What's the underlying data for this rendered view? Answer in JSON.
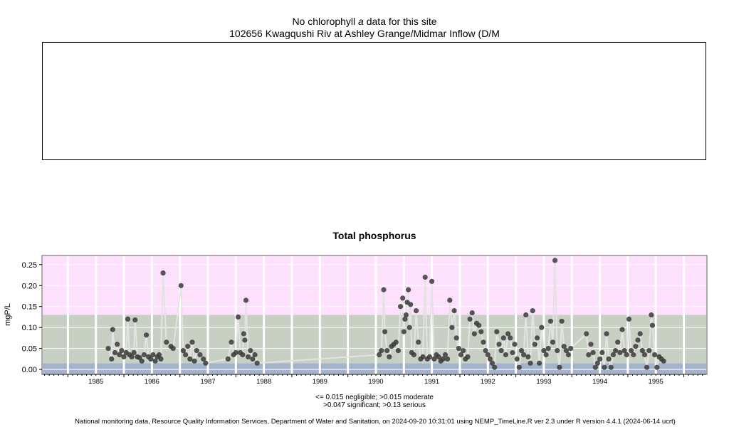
{
  "header": {
    "chl_prefix": "No chlorophyll",
    "chl_italic": "a",
    "chl_suffix": " data for this site",
    "site": "102656 Kwagqushi Riv at Ashley Grange/Midmar Inflow (D/M"
  },
  "notes": {
    "line1": "<= 0.015 negligible; >0.015 moderate",
    "line2": ">0.047 significant; >0.13 serious"
  },
  "footer": "National monitoring data, Resource Quality Information Services, Department of Water and Sanitation, on 2024-09-20 10:31:01 using NEMP_TimeLine.R ver 2.3 under R version 4.4.1 (2024-06-14 ucrt)",
  "colors": {
    "negligible": "#a4b3cc",
    "moderate_significant": "#c8d0c4",
    "serious": "#fde0fc",
    "points": "#3a3a3a",
    "line": "#e3e3e3",
    "grid": "#ffffff"
  },
  "chart_data": {
    "type": "scatter",
    "title": "Total phosphorus",
    "ylabel": "mgP/L",
    "xlabel": "",
    "xlim": [
      1984.55,
      1996.4
    ],
    "ylim": [
      -0.01,
      0.27
    ],
    "yticks": [
      "0.00",
      "0.05",
      "0.10",
      "0.15",
      "0.20",
      "0.25"
    ],
    "xticks": [
      "1985",
      "1986",
      "1987",
      "1988",
      "1989",
      "1990",
      "1991",
      "1992",
      "1993",
      "1994",
      "1995"
    ],
    "bands": [
      {
        "name": "negligible",
        "from": -0.01,
        "to": 0.015
      },
      {
        "name": "moderate/significant",
        "from": 0.015,
        "to": 0.13
      },
      {
        "name": "serious",
        "from": 0.13,
        "to": 0.27
      }
    ],
    "grid": true,
    "series": [
      {
        "points": [
          [
            1985.72,
            0.05
          ],
          [
            1985.78,
            0.025
          ],
          [
            1985.8,
            0.095
          ],
          [
            1985.84,
            0.04
          ],
          [
            1985.88,
            0.06
          ],
          [
            1985.92,
            0.035
          ],
          [
            1985.96,
            0.045
          ],
          [
            1986.0,
            0.03
          ],
          [
            1986.04,
            0.04
          ],
          [
            1986.07,
            0.12
          ],
          [
            1986.1,
            0.035
          ],
          [
            1986.14,
            0.03
          ],
          [
            1986.18,
            0.04
          ],
          [
            1986.2,
            0.118
          ],
          [
            1986.24,
            0.03
          ],
          [
            1986.28,
            0.028
          ],
          [
            1986.32,
            0.02
          ],
          [
            1986.36,
            0.035
          ],
          [
            1986.4,
            0.082
          ],
          [
            1986.44,
            0.03
          ],
          [
            1986.48,
            0.025
          ],
          [
            1986.52,
            0.035
          ],
          [
            1986.56,
            0.02
          ],
          [
            1986.6,
            0.03
          ],
          [
            1986.63,
            0.035
          ],
          [
            1986.66,
            0.025
          ],
          [
            1986.7,
            0.23
          ],
          [
            1986.76,
            0.065
          ],
          [
            1986.84,
            0.055
          ],
          [
            1986.88,
            0.05
          ],
          [
            1987.02,
            0.2
          ],
          [
            1987.06,
            0.045
          ],
          [
            1987.1,
            0.035
          ],
          [
            1987.14,
            0.055
          ],
          [
            1987.18,
            0.025
          ],
          [
            1987.22,
            0.065
          ],
          [
            1987.26,
            0.02
          ],
          [
            1987.3,
            0.045
          ],
          [
            1987.36,
            0.035
          ],
          [
            1987.42,
            0.025
          ],
          [
            1987.46,
            0.015
          ],
          [
            1987.86,
            0.025
          ],
          [
            1987.92,
            0.065
          ],
          [
            1987.96,
            0.035
          ],
          [
            1988.0,
            0.04
          ],
          [
            1988.04,
            0.125
          ],
          [
            1988.08,
            0.04
          ],
          [
            1988.12,
            0.035
          ],
          [
            1988.14,
            0.085
          ],
          [
            1988.16,
            0.07
          ],
          [
            1988.18,
            0.165
          ],
          [
            1988.22,
            0.03
          ],
          [
            1988.26,
            0.045
          ],
          [
            1988.3,
            0.025
          ],
          [
            1988.34,
            0.035
          ],
          [
            1988.38,
            0.015
          ],
          [
            1990.56,
            0.035
          ],
          [
            1990.6,
            0.045
          ],
          [
            1990.64,
            0.19
          ],
          [
            1990.66,
            0.09
          ],
          [
            1990.7,
            0.045
          ],
          [
            1990.74,
            0.03
          ],
          [
            1990.78,
            0.055
          ],
          [
            1990.82,
            0.06
          ],
          [
            1990.86,
            0.065
          ],
          [
            1990.9,
            0.045
          ],
          [
            1990.94,
            0.15
          ],
          [
            1990.98,
            0.17
          ],
          [
            1991.0,
            0.09
          ],
          [
            1991.02,
            0.12
          ],
          [
            1991.04,
            0.13
          ],
          [
            1991.06,
            0.16
          ],
          [
            1991.08,
            0.19
          ],
          [
            1991.1,
            0.1
          ],
          [
            1991.12,
            0.155
          ],
          [
            1991.14,
            0.04
          ],
          [
            1991.18,
            0.035
          ],
          [
            1991.22,
            0.14
          ],
          [
            1991.26,
            0.065
          ],
          [
            1991.3,
            0.025
          ],
          [
            1991.34,
            0.03
          ],
          [
            1991.38,
            0.22
          ],
          [
            1991.42,
            0.025
          ],
          [
            1991.46,
            0.03
          ],
          [
            1991.5,
            0.21
          ],
          [
            1991.54,
            0.025
          ],
          [
            1991.58,
            0.035
          ],
          [
            1991.62,
            0.03
          ],
          [
            1991.66,
            0.02
          ],
          [
            1991.7,
            0.025
          ],
          [
            1991.74,
            0.035
          ],
          [
            1991.78,
            0.025
          ],
          [
            1991.82,
            0.165
          ],
          [
            1991.86,
            0.1
          ],
          [
            1991.9,
            0.14
          ],
          [
            1991.94,
            0.075
          ],
          [
            1991.98,
            0.05
          ],
          [
            1992.02,
            0.035
          ],
          [
            1992.06,
            0.045
          ],
          [
            1992.1,
            0.025
          ],
          [
            1992.14,
            0.03
          ],
          [
            1992.18,
            0.12
          ],
          [
            1992.22,
            0.135
          ],
          [
            1992.26,
            0.085
          ],
          [
            1992.3,
            0.11
          ],
          [
            1992.34,
            0.105
          ],
          [
            1992.38,
            0.09
          ],
          [
            1992.42,
            0.065
          ],
          [
            1992.46,
            0.045
          ],
          [
            1992.5,
            0.035
          ],
          [
            1992.54,
            0.025
          ],
          [
            1992.58,
            0.015
          ],
          [
            1992.62,
            0.005
          ],
          [
            1992.66,
            0.09
          ],
          [
            1992.7,
            0.06
          ],
          [
            1992.74,
            0.045
          ],
          [
            1992.78,
            0.075
          ],
          [
            1992.82,
            0.035
          ],
          [
            1992.86,
            0.085
          ],
          [
            1992.9,
            0.075
          ],
          [
            1992.94,
            0.04
          ],
          [
            1992.98,
            0.06
          ],
          [
            1993.02,
            0.025
          ],
          [
            1993.06,
            0.005
          ],
          [
            1993.1,
            0.045
          ],
          [
            1993.14,
            0.035
          ],
          [
            1993.18,
            0.13
          ],
          [
            1993.22,
            0.03
          ],
          [
            1993.26,
            0.015
          ],
          [
            1993.3,
            0.14
          ],
          [
            1993.34,
            0.06
          ],
          [
            1993.38,
            0.075
          ],
          [
            1993.42,
            0.015
          ],
          [
            1993.46,
            0.1
          ],
          [
            1993.5,
            0.045
          ],
          [
            1993.54,
            0.035
          ],
          [
            1993.58,
            0.05
          ],
          [
            1993.62,
            0.115
          ],
          [
            1993.66,
            0.065
          ],
          [
            1993.7,
            0.26
          ],
          [
            1993.74,
            0.045
          ],
          [
            1993.78,
            0.005
          ],
          [
            1993.82,
            0.115
          ],
          [
            1993.86,
            0.055
          ],
          [
            1993.9,
            0.045
          ],
          [
            1993.94,
            0.035
          ],
          [
            1993.98,
            0.05
          ],
          [
            1994.26,
            0.085
          ],
          [
            1994.3,
            0.035
          ],
          [
            1994.34,
            0.06
          ],
          [
            1994.38,
            0.04
          ],
          [
            1994.42,
            0.005
          ],
          [
            1994.46,
            0.015
          ],
          [
            1994.5,
            0.025
          ],
          [
            1994.54,
            0.04
          ],
          [
            1994.58,
            0.005
          ],
          [
            1994.62,
            0.085
          ],
          [
            1994.66,
            0.025
          ],
          [
            1994.7,
            0.005
          ],
          [
            1994.74,
            0.035
          ],
          [
            1994.78,
            0.045
          ],
          [
            1994.82,
            0.065
          ],
          [
            1994.86,
            0.04
          ],
          [
            1994.9,
            0.095
          ],
          [
            1994.94,
            0.045
          ],
          [
            1994.98,
            0.035
          ],
          [
            1995.02,
            0.12
          ],
          [
            1995.06,
            0.045
          ],
          [
            1995.1,
            0.035
          ],
          [
            1995.14,
            0.055
          ],
          [
            1995.18,
            0.07
          ],
          [
            1995.22,
            0.085
          ],
          [
            1995.26,
            0.045
          ],
          [
            1995.3,
            0.035
          ],
          [
            1995.34,
            0.005
          ],
          [
            1995.38,
            0.045
          ],
          [
            1995.42,
            0.13
          ],
          [
            1995.44,
            0.105
          ],
          [
            1995.48,
            0.035
          ],
          [
            1995.52,
            0.005
          ],
          [
            1995.56,
            0.03
          ],
          [
            1995.6,
            0.025
          ],
          [
            1995.64,
            0.02
          ]
        ]
      }
    ]
  }
}
